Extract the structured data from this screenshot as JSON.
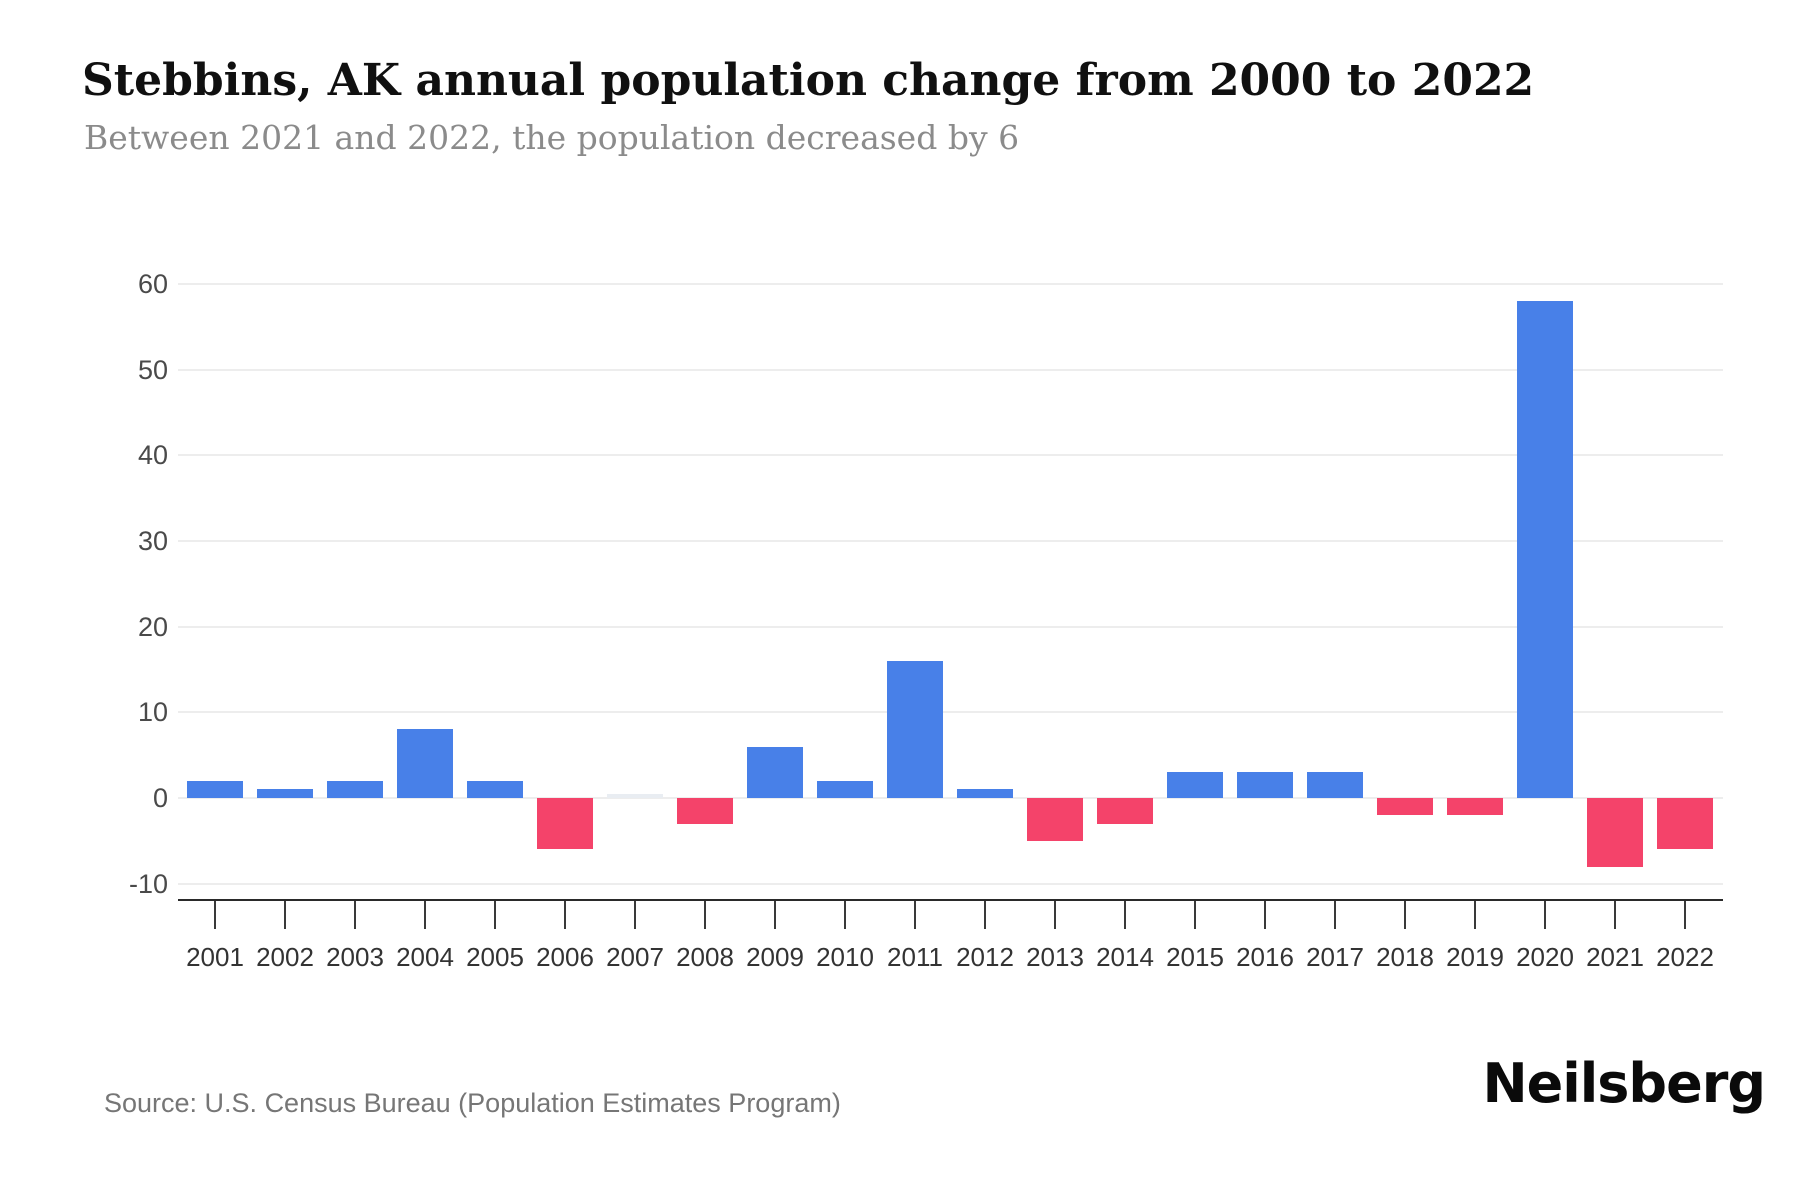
{
  "header": {
    "title": "Stebbins, AK annual population change from 2000 to 2022",
    "subtitle": "Between 2021 and 2022, the population decreased by 6"
  },
  "footer": {
    "source": "Source: U.S. Census Bureau (Population Estimates Program)",
    "brand": "Neilsberg"
  },
  "chart_data": {
    "type": "bar",
    "title": "Stebbins, AK annual population change from 2000 to 2022",
    "subtitle": "Between 2021 and 2022, the population decreased by 6",
    "categories": [
      "2001",
      "2002",
      "2003",
      "2004",
      "2005",
      "2006",
      "2007",
      "2008",
      "2009",
      "2010",
      "2011",
      "2012",
      "2013",
      "2014",
      "2015",
      "2016",
      "2017",
      "2018",
      "2019",
      "2020",
      "2021",
      "2022"
    ],
    "values": [
      2,
      1,
      2,
      8,
      2,
      -6,
      0,
      -3,
      6,
      2,
      16,
      1,
      -5,
      -3,
      3,
      3,
      3,
      -2,
      -2,
      58,
      -8,
      -6
    ],
    "xlabel": "",
    "ylabel": "",
    "ylim": [
      -10,
      60
    ],
    "y_ticks": [
      60,
      50,
      40,
      30,
      20,
      10,
      0,
      -10
    ],
    "grid": true,
    "legend": false,
    "colors": {
      "positive": "#4880E8",
      "negative": "#F4436A",
      "zero_bar": "#e9edf2",
      "gridline": "#ededed",
      "axis": "#2a2a2a"
    }
  }
}
